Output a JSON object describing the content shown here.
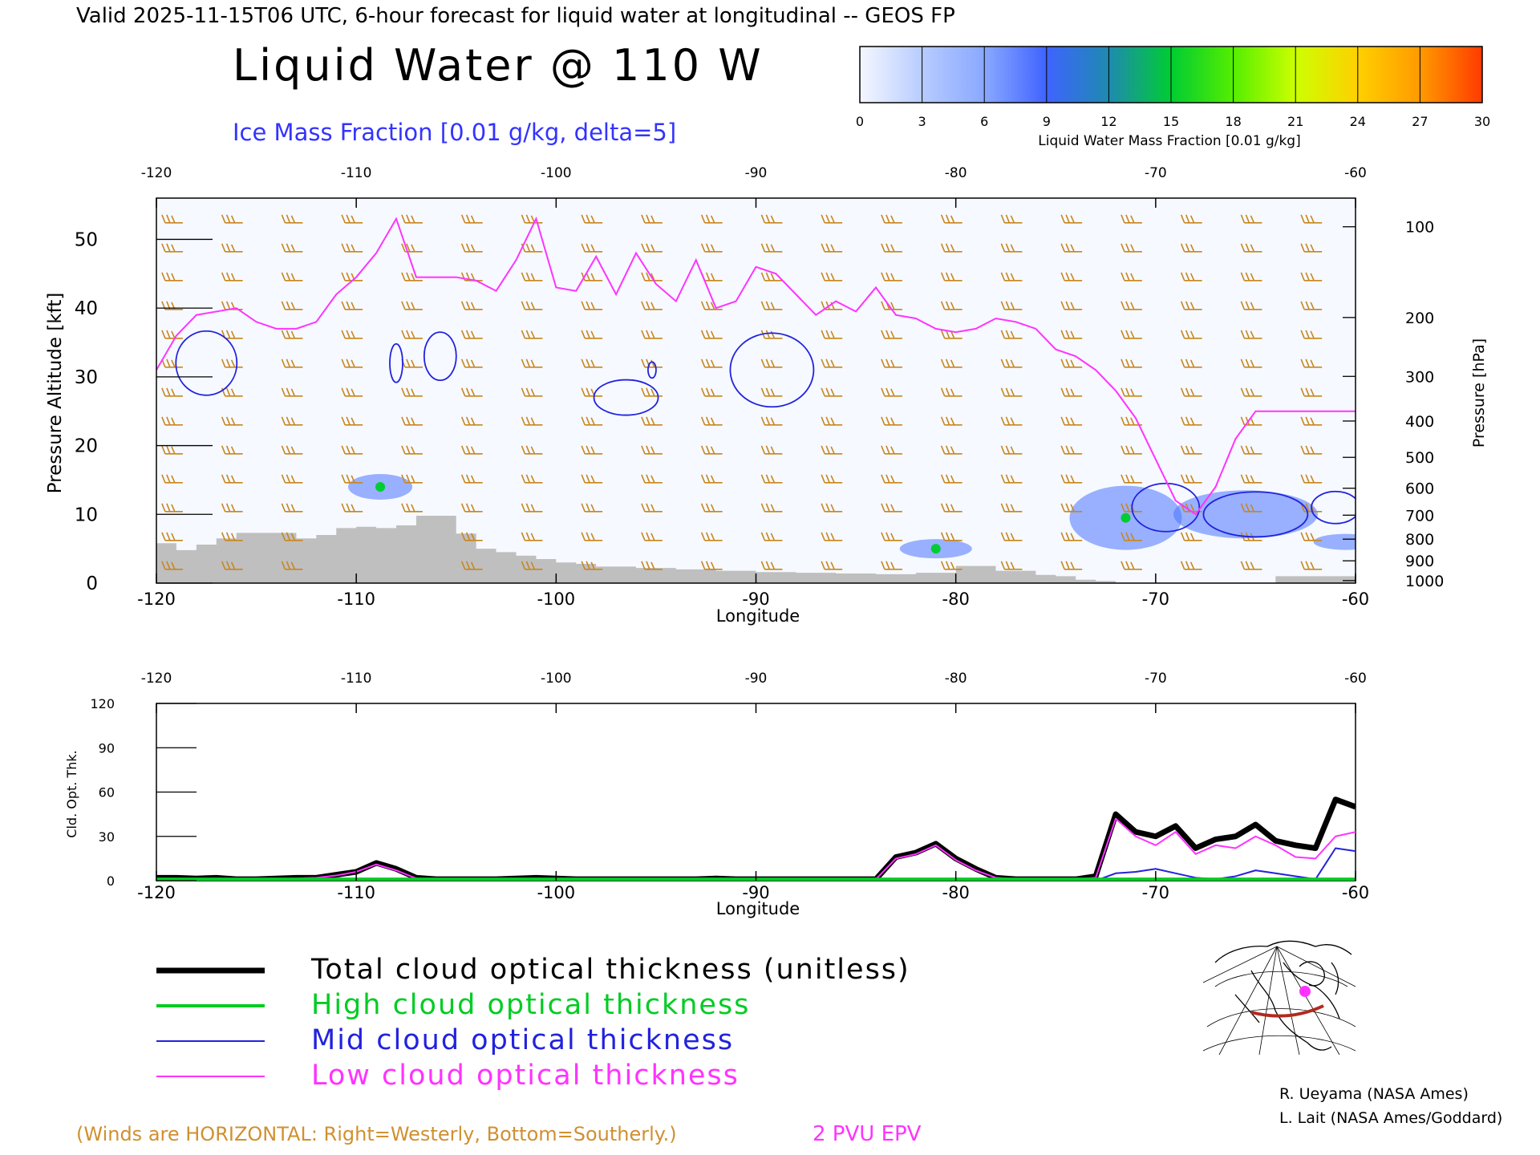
{
  "header": {
    "valid_line": "Valid 2025-11-15T06 UTC, 6-hour forecast for liquid water at longitudinal -- GEOS FP",
    "main_title": "Liquid Water @ 110 W",
    "subtitle": "Ice Mass Fraction [0.01 g/kg, delta=5]",
    "subtitle_color": "#3333ff"
  },
  "colorbar": {
    "label": "Liquid Water Mass Fraction [0.01 g/kg]",
    "ticks": [
      "0",
      "3",
      "6",
      "9",
      "12",
      "15",
      "18",
      "21",
      "24",
      "27",
      "30"
    ],
    "colors": [
      "#f4f7ff",
      "#b7ccff",
      "#8aa8ff",
      "#3f63ff",
      "#1e8ab0",
      "#00cc33",
      "#55ee00",
      "#ccff00",
      "#ffd000",
      "#ff9a00",
      "#ff3a00"
    ]
  },
  "top_panel": {
    "xlabel": "Longitude",
    "ylabel_left": "Pressure Altitude [kft]",
    "ylabel_right": "Pressure [hPa]",
    "x_ticks": [
      "-120",
      "-110",
      "-100",
      "-90",
      "-80",
      "-70",
      "-60"
    ],
    "y_left_ticks": [
      "0",
      "10",
      "20",
      "30",
      "40",
      "50"
    ],
    "y_right_ticks": [
      "100",
      "200",
      "300",
      "400",
      "500",
      "600",
      "700",
      "800",
      "900",
      "1000"
    ],
    "xlim": [
      -120,
      -60
    ],
    "ylim_kft": [
      0,
      56
    ],
    "terrain_color": "#bfbfbf",
    "epv_color": "#ff33ff",
    "ice_color": "#2222dd",
    "barb_color": "#c8861e"
  },
  "chart_data": [
    {
      "type": "area",
      "name": "terrain",
      "x": [
        -120,
        -119,
        -118,
        -117,
        -116,
        -114,
        -113,
        -112,
        -111,
        -110,
        -109,
        -108,
        -107,
        -106,
        -105,
        -104,
        -103,
        -102,
        -101,
        -100,
        -99,
        -98,
        -96,
        -94,
        -92,
        -90,
        -88,
        -86,
        -84,
        -82,
        -80,
        -78,
        -76,
        -75,
        -74,
        -73,
        -72,
        -70,
        -68,
        -66,
        -64,
        -62,
        -61,
        -60
      ],
      "y": [
        5.8,
        4.8,
        5.6,
        6.5,
        7.3,
        7.3,
        6.5,
        7.0,
        8.0,
        8.2,
        8.0,
        8.4,
        9.8,
        9.8,
        7.2,
        5.0,
        4.5,
        4.0,
        3.5,
        3.0,
        2.8,
        2.4,
        2.2,
        2.0,
        1.8,
        1.6,
        1.5,
        1.4,
        1.3,
        1.5,
        2.5,
        1.8,
        1.2,
        1.0,
        0.5,
        0.3,
        0,
        0,
        0,
        0,
        1.0,
        1.0,
        1.0,
        1.0
      ]
    },
    {
      "type": "line",
      "name": "2 PVU EPV",
      "x": [
        -120,
        -119,
        -118,
        -117,
        -116,
        -115,
        -114,
        -113,
        -112,
        -111,
        -110,
        -109,
        -108,
        -107,
        -106,
        -105,
        -104,
        -103,
        -102,
        -101,
        -100,
        -99,
        -98,
        -97,
        -96,
        -95,
        -94,
        -93,
        -92,
        -91,
        -90,
        -89,
        -88,
        -87,
        -86,
        -85,
        -84,
        -83,
        -82,
        -81,
        -80,
        -79,
        -78,
        -77,
        -76,
        -75,
        -74,
        -73,
        -72,
        -71,
        -70,
        -69,
        -68,
        -67,
        -66,
        -65,
        -64,
        -63,
        -62,
        -61,
        -60
      ],
      "y": [
        31,
        36,
        39,
        39.5,
        40,
        38,
        37,
        37,
        38,
        42,
        44.5,
        48,
        53,
        44.5,
        44.5,
        44.5,
        44,
        42.5,
        47,
        53,
        43,
        42.5,
        47.5,
        42,
        48,
        43.5,
        41,
        47,
        40,
        41,
        46,
        45,
        42,
        39,
        41,
        39.5,
        43,
        39,
        38.5,
        37,
        36.5,
        37,
        38.5,
        38,
        37,
        34,
        33,
        31,
        28,
        24,
        18,
        12,
        10,
        14,
        21,
        25,
        25,
        25,
        25,
        25,
        25
      ]
    },
    {
      "type": "line",
      "name": "Total cloud optical thickness (unitless)",
      "x": [
        -120,
        -119,
        -118,
        -117,
        -116,
        -115,
        -114,
        -113,
        -112,
        -111,
        -110,
        -109,
        -108,
        -107,
        -106,
        -105,
        -104,
        -103,
        -102,
        -101,
        -100,
        -99,
        -98,
        -97,
        -96,
        -95,
        -94,
        -93,
        -92,
        -91,
        -90,
        -89,
        -88,
        -87,
        -86,
        -85,
        -84,
        -83,
        -82,
        -81,
        -80,
        -79,
        -78,
        -77,
        -76,
        -75,
        -74,
        -73,
        -72,
        -71,
        -70,
        -69,
        -68,
        -67,
        -66,
        -65,
        -64,
        -63,
        -62,
        -61,
        -60
      ],
      "y": [
        2,
        2,
        1.5,
        2,
        1,
        1,
        1.5,
        2,
        2,
        4,
        6,
        12,
        8,
        2,
        1,
        1,
        1,
        1,
        1.5,
        2,
        1.5,
        1,
        1,
        1,
        1,
        1,
        1,
        1,
        1.5,
        1,
        1,
        1,
        1,
        1,
        1,
        1,
        1,
        16,
        19,
        25,
        15,
        8,
        2,
        1,
        1,
        1,
        1,
        3,
        45,
        33,
        30,
        37,
        22,
        28,
        30,
        38,
        27,
        24,
        22,
        55,
        50
      ]
    },
    {
      "type": "line",
      "name": "High cloud optical thickness",
      "x": [
        -120,
        -110,
        -100,
        -90,
        -80,
        -70,
        -60
      ],
      "y": [
        1,
        1,
        1,
        1,
        1,
        1,
        1
      ]
    },
    {
      "type": "line",
      "name": "Mid cloud optical thickness",
      "x": [
        -120,
        -110,
        -100,
        -90,
        -80,
        -74,
        -73,
        -72,
        -71,
        -70,
        -69,
        -68,
        -67,
        -66,
        -65,
        -64,
        -63,
        -62,
        -61,
        -60
      ],
      "y": [
        0,
        0,
        0,
        0,
        0,
        0,
        0,
        5,
        6,
        8,
        5,
        2,
        1,
        3,
        7,
        5,
        3,
        1,
        22,
        20
      ]
    },
    {
      "type": "line",
      "name": "Low cloud optical thickness",
      "x": [
        -120,
        -119,
        -118,
        -117,
        -116,
        -115,
        -114,
        -113,
        -112,
        -111,
        -110,
        -109,
        -108,
        -107,
        -106,
        -105,
        -104,
        -103,
        -102,
        -101,
        -100,
        -99,
        -98,
        -97,
        -96,
        -95,
        -94,
        -93,
        -92,
        -91,
        -90,
        -89,
        -88,
        -87,
        -86,
        -85,
        -84,
        -83,
        -82,
        -81,
        -80,
        -79,
        -78,
        -77,
        -76,
        -75,
        -74,
        -73,
        -72,
        -71,
        -70,
        -69,
        -68,
        -67,
        -66,
        -65,
        -64,
        -63,
        -62,
        -61,
        -60
      ],
      "y": [
        1,
        1,
        1,
        1.5,
        1,
        1,
        1,
        1.5,
        2,
        3.5,
        6,
        11,
        7,
        1.5,
        1,
        1,
        1,
        1,
        1,
        1.5,
        1,
        1,
        1,
        1,
        1,
        1,
        1,
        1,
        1,
        1,
        1,
        1,
        1,
        1,
        1,
        1,
        1,
        15,
        18,
        24,
        14,
        7,
        2,
        1,
        1,
        1,
        1,
        2,
        42,
        30,
        24,
        33,
        18,
        24,
        22,
        30,
        24,
        16,
        15,
        30,
        33
      ]
    }
  ],
  "bottom_panel": {
    "xlabel": "Longitude",
    "ylabel": "Cld. Opt. Thk.",
    "x_ticks": [
      "-120",
      "-110",
      "-100",
      "-90",
      "-80",
      "-70",
      "-60"
    ],
    "y_ticks": [
      "0",
      "30",
      "60",
      "90",
      "120"
    ],
    "xlim": [
      -120,
      -60
    ],
    "ylim": [
      0,
      120
    ]
  },
  "legend": {
    "items": [
      {
        "label": "Total cloud optical thickness (unitless)",
        "color": "#000000",
        "width": 7
      },
      {
        "label": "High cloud optical thickness",
        "color": "#00cc22",
        "width": 4
      },
      {
        "label": "Mid cloud optical thickness",
        "color": "#2222dd",
        "width": 2
      },
      {
        "label": "Low cloud optical thickness",
        "color": "#ff33ff",
        "width": 2
      }
    ]
  },
  "footer": {
    "winds_note": "(Winds are HORIZONTAL: Right=Westerly, Bottom=Southerly.)",
    "winds_color": "#d09030",
    "epv_label": "2 PVU EPV",
    "epv_color": "#ff33ff",
    "credit_1": "R. Ueyama (NASA Ames)",
    "credit_2": "L. Lait (NASA Ames/Goddard)"
  }
}
